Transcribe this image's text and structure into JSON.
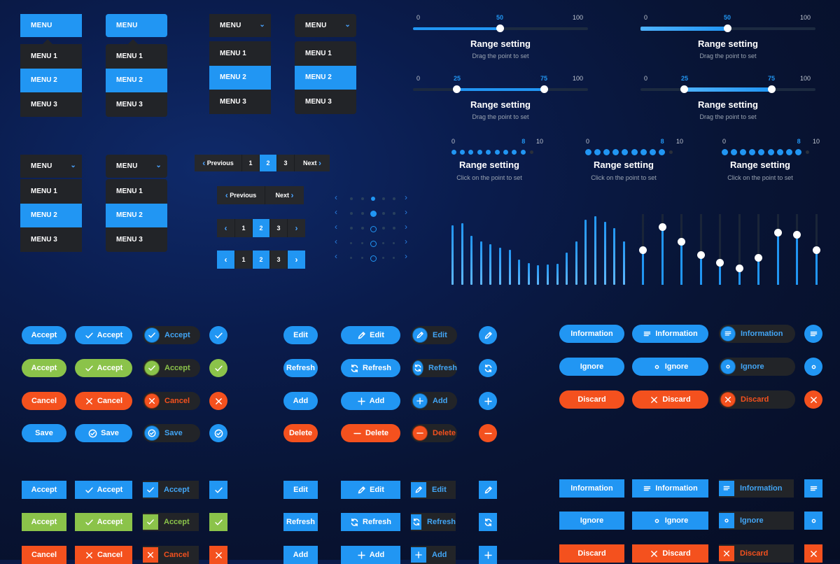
{
  "menus": {
    "header_label": "MENU",
    "items": [
      "MENU 1",
      "MENU 2",
      "MENU 3"
    ]
  },
  "pagination": {
    "previous": "Previous",
    "next": "Next",
    "pages": [
      "1",
      "2",
      "3"
    ],
    "active_page": "2"
  },
  "sliders": {
    "title": "Range setting",
    "drag_subtitle": "Drag the point to set",
    "click_subtitle": "Click on the point to set",
    "min": "0",
    "max": "100",
    "single_value": "50",
    "range_low": "25",
    "range_high": "75",
    "step_min": "0",
    "step_max": "10",
    "step_value": "8"
  },
  "equalizer_bars": [
    0.85,
    0.88,
    0.7,
    0.62,
    0.58,
    0.53,
    0.5,
    0.36,
    0.31,
    0.28,
    0.29,
    0.3,
    0.46,
    0.62,
    0.93,
    0.98,
    0.9,
    0.81,
    0.62
  ],
  "mixer_levels": [
    0.5,
    0.82,
    0.61,
    0.43,
    0.32,
    0.24,
    0.39,
    0.74,
    0.71,
    0.5
  ],
  "buttons": {
    "accept": "Accept",
    "cancel": "Cancel",
    "save": "Save",
    "edit": "Edit",
    "refresh": "Refresh",
    "add": "Add",
    "delete": "Delete",
    "information": "Information",
    "ignore": "Ignore",
    "discard": "Discard"
  },
  "colors": {
    "primary": "#2196f3",
    "success": "#8bc34a",
    "danger": "#f4511e",
    "surface": "#222428"
  }
}
